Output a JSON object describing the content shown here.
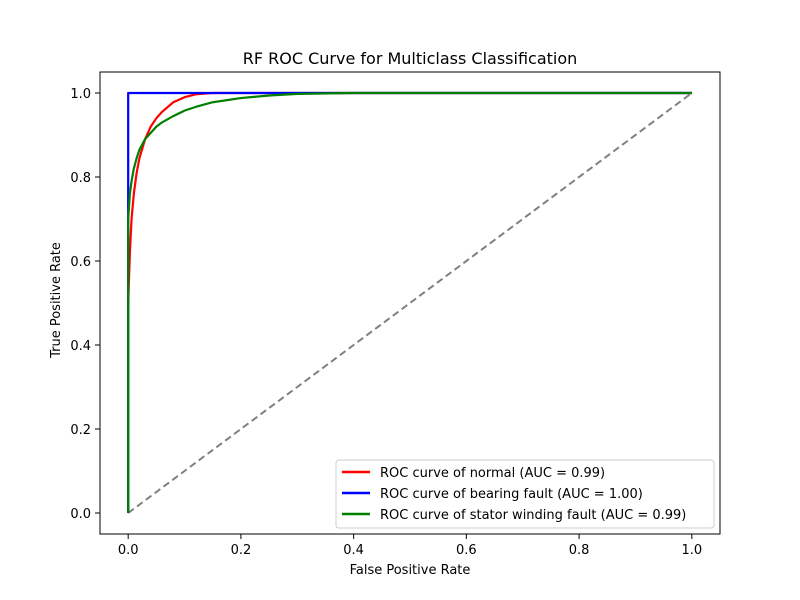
{
  "chart_data": {
    "type": "line",
    "title": "RF ROC Curve for Multiclass Classification",
    "xlabel": "False Positive Rate",
    "ylabel": "True Positive Rate",
    "xlim": [
      -0.05,
      1.05
    ],
    "ylim": [
      -0.05,
      1.05
    ],
    "xticks": [
      0.0,
      0.2,
      0.4,
      0.6,
      0.8,
      1.0
    ],
    "xtick_labels": [
      "0.0",
      "0.2",
      "0.4",
      "0.6",
      "0.8",
      "1.0"
    ],
    "yticks": [
      0.0,
      0.2,
      0.4,
      0.6,
      0.8,
      1.0
    ],
    "ytick_labels": [
      "0.0",
      "0.2",
      "0.4",
      "0.6",
      "0.8",
      "1.0"
    ],
    "grid": false,
    "legend_position": "lower-right",
    "series": [
      {
        "name": "ROC curve of normal (AUC = 0.99)",
        "color": "#ff0000",
        "x": [
          0.0,
          0.0,
          0.003,
          0.006,
          0.01,
          0.015,
          0.02,
          0.03,
          0.04,
          0.05,
          0.06,
          0.08,
          0.1,
          0.12,
          0.15,
          0.2,
          1.0
        ],
        "y": [
          0.0,
          0.5,
          0.62,
          0.7,
          0.76,
          0.81,
          0.845,
          0.89,
          0.92,
          0.94,
          0.955,
          0.978,
          0.99,
          0.997,
          1.0,
          1.0,
          1.0
        ]
      },
      {
        "name": "ROC curve of bearing fault (AUC = 1.00)",
        "color": "#0000ff",
        "x": [
          0.0,
          0.0,
          0.002,
          1.0
        ],
        "y": [
          0.0,
          1.0,
          1.0,
          1.0
        ]
      },
      {
        "name": "ROC curve of stator winding fault (AUC = 0.99)",
        "color": "#008000",
        "x": [
          0.0,
          0.0,
          0.003,
          0.006,
          0.01,
          0.015,
          0.02,
          0.03,
          0.04,
          0.05,
          0.06,
          0.08,
          0.1,
          0.12,
          0.15,
          0.2,
          0.25,
          0.3,
          0.4,
          1.0
        ],
        "y": [
          0.0,
          0.7,
          0.76,
          0.79,
          0.82,
          0.845,
          0.865,
          0.89,
          0.905,
          0.92,
          0.93,
          0.945,
          0.958,
          0.967,
          0.978,
          0.988,
          0.994,
          0.998,
          1.0,
          1.0
        ]
      }
    ],
    "reference_line": {
      "color": "#808080",
      "style": "dashed",
      "x": [
        0.0,
        1.0
      ],
      "y": [
        0.0,
        1.0
      ]
    }
  }
}
